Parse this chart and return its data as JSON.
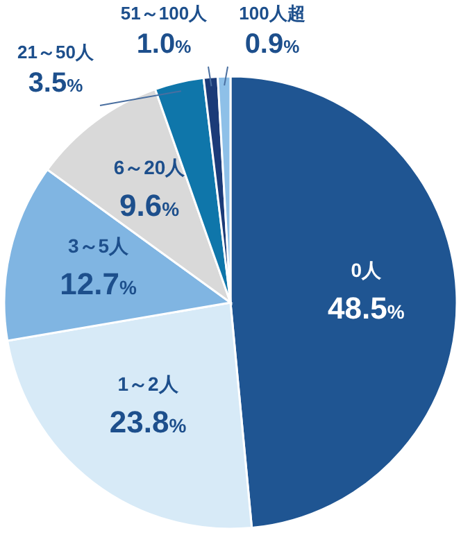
{
  "chart_data": {
    "type": "pie",
    "categories": [
      "0人",
      "1～2人",
      "3～5人",
      "6～20人",
      "21～50人",
      "51～100人",
      "100人超"
    ],
    "values": [
      48.5,
      23.8,
      12.7,
      9.6,
      3.5,
      1.0,
      0.9
    ],
    "value_labels": [
      "48.5%",
      "23.8%",
      "12.7%",
      "9.6%",
      "3.5%",
      "1.0%",
      "0.9%"
    ],
    "colors": [
      "#1f5592",
      "#d7eaf7",
      "#80b5e2",
      "#d9d9d9",
      "#0f76aa",
      "#1b3b78",
      "#8ec0e8"
    ]
  }
}
